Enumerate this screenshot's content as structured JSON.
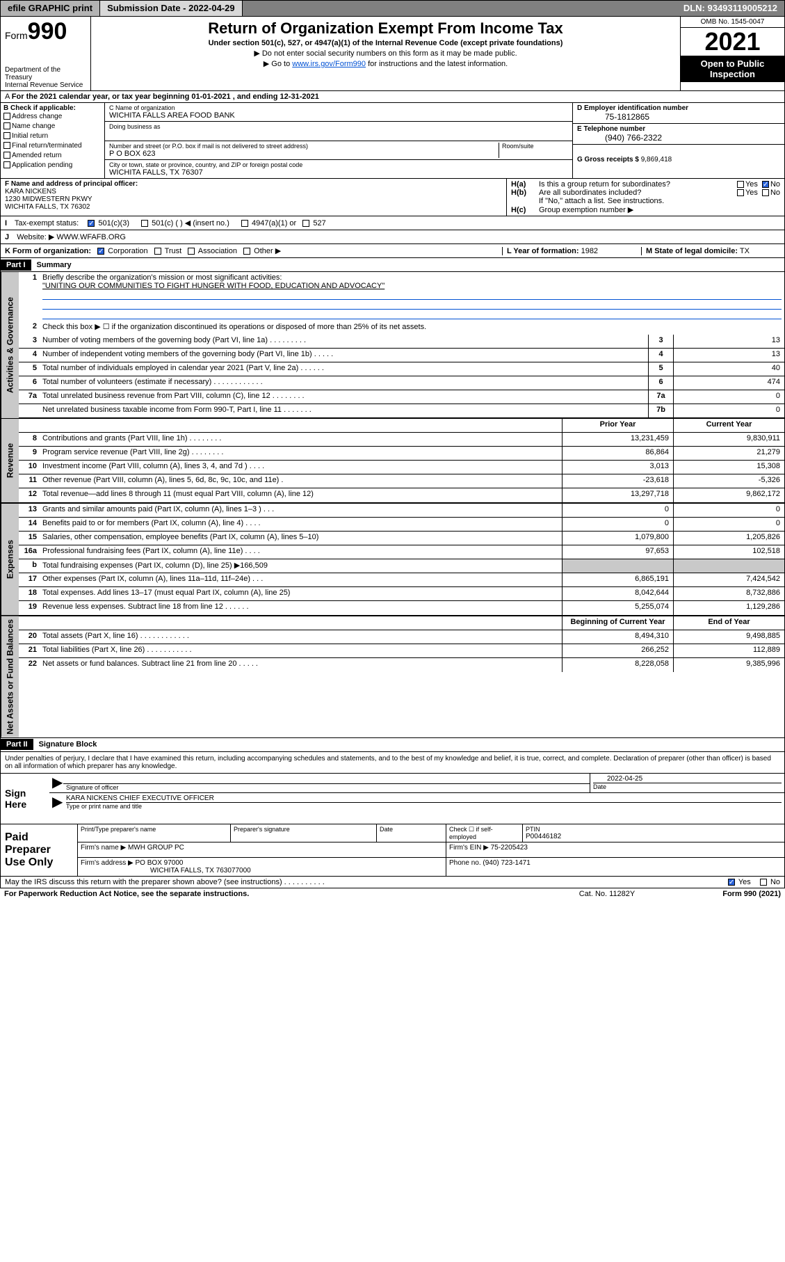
{
  "topbar": {
    "efile": "efile GRAPHIC print",
    "submission": "Submission Date - 2022-04-29",
    "dln": "DLN: 93493119005212"
  },
  "header": {
    "form": "Form",
    "form_num": "990",
    "dept": "Department of the Treasury",
    "irs": "Internal Revenue Service",
    "title": "Return of Organization Exempt From Income Tax",
    "sub1": "Under section 501(c), 527, or 4947(a)(1) of the Internal Revenue Code (except private foundations)",
    "sub2": "▶ Do not enter social security numbers on this form as it may be made public.",
    "sub3_pre": "▶ Go to ",
    "sub3_link": "www.irs.gov/Form990",
    "sub3_post": " for instructions and the latest information.",
    "omb": "OMB No. 1545-0047",
    "year": "2021",
    "otp1": "Open to Public",
    "otp2": "Inspection"
  },
  "row_a": "For the 2021 calendar year, or tax year beginning 01-01-2021    , and ending 12-31-2021",
  "col_b": {
    "hdr": "B Check if applicable:",
    "items": [
      "Address change",
      "Name change",
      "Initial return",
      "Final return/terminated",
      "Amended return",
      "Application pending"
    ]
  },
  "col_c": {
    "name_label": "C Name of organization",
    "name": "WICHITA FALLS AREA FOOD BANK",
    "dba_label": "Doing business as",
    "dba": "",
    "addr_label": "Number and street (or P.O. box if mail is not delivered to street address)",
    "room_label": "Room/suite",
    "addr": "P O BOX 623",
    "city_label": "City or town, state or province, country, and ZIP or foreign postal code",
    "city": "WICHITA FALLS, TX   76307"
  },
  "col_d": {
    "ein_label": "D Employer identification number",
    "ein": "75-1812865",
    "phone_label": "E Telephone number",
    "phone": "(940) 766-2322",
    "gross_label": "G Gross receipts $",
    "gross": "9,869,418"
  },
  "col_f": {
    "label": "F Name and address of principal officer:",
    "name": "KARA NICKENS",
    "addr1": "1230 MIDWESTERN PKWY",
    "addr2": "WICHITA FALLS, TX   76302"
  },
  "col_h": {
    "ha": "Is this a group return for subordinates?",
    "hb": "Are all subordinates included?",
    "hb_note": "If \"No,\" attach a list. See instructions.",
    "hc": "Group exemption number ▶",
    "yes": "Yes",
    "no": "No"
  },
  "row_i": {
    "label": "Tax-exempt status:",
    "opt1": "501(c)(3)",
    "opt2": "501(c) (   ) ◀ (insert no.)",
    "opt3": "4947(a)(1) or",
    "opt4": "527"
  },
  "row_j": {
    "label": "Website: ▶",
    "val": "WWW.WFAFB.ORG"
  },
  "row_k": {
    "label": "K Form of organization:",
    "opts": [
      "Corporation",
      "Trust",
      "Association",
      "Other ▶"
    ]
  },
  "row_l": {
    "label": "L Year of formation:",
    "val": "1982"
  },
  "row_m": {
    "label": "M State of legal domicile:",
    "val": "TX"
  },
  "part1": {
    "hdr": "Part I",
    "title": "Summary"
  },
  "summary": {
    "line1_label": "Briefly describe the organization's mission or most significant activities:",
    "line1_val": "\"UNITING OUR COMMUNITIES TO FIGHT HUNGER WITH FOOD, EDUCATION AND ADVOCACY\"",
    "line2": "Check this box ▶ ☐  if the organization discontinued its operations or disposed of more than 25% of its net assets.",
    "rows_gov": [
      {
        "n": "3",
        "d": "Number of voting members of the governing body (Part VI, line 1a)   .    .    .    .    .    .    .    .    .",
        "c": "3",
        "v": "13"
      },
      {
        "n": "4",
        "d": "Number of independent voting members of the governing body (Part VI, line 1b)   .    .    .    .    .",
        "c": "4",
        "v": "13"
      },
      {
        "n": "5",
        "d": "Total number of individuals employed in calendar year 2021 (Part V, line 2a)   .    .    .    .    .    .",
        "c": "5",
        "v": "40"
      },
      {
        "n": "6",
        "d": "Total number of volunteers (estimate if necessary)   .    .    .    .    .    .    .    .    .    .    .    .",
        "c": "6",
        "v": "474"
      },
      {
        "n": "7a",
        "d": "Total unrelated business revenue from Part VIII, column (C), line 12   .    .    .    .    .    .    .    .",
        "c": "7a",
        "v": "0"
      },
      {
        "n": "",
        "d": "Net unrelated business taxable income from Form 990-T, Part I, line 11   .    .    .    .    .    .    .",
        "c": "7b",
        "v": "0"
      }
    ],
    "hdr_prior": "Prior Year",
    "hdr_current": "Current Year",
    "hdr_begin": "Beginning of Current Year",
    "hdr_end": "End of Year",
    "rows_rev": [
      {
        "n": "8",
        "d": "Contributions and grants (Part VIII, line 1h)   .    .    .    .    .    .    .    .",
        "p": "13,231,459",
        "c": "9,830,911"
      },
      {
        "n": "9",
        "d": "Program service revenue (Part VIII, line 2g)   .    .    .    .    .    .    .    .",
        "p": "86,864",
        "c": "21,279"
      },
      {
        "n": "10",
        "d": "Investment income (Part VIII, column (A), lines 3, 4, and 7d )   .    .    .    .",
        "p": "3,013",
        "c": "15,308"
      },
      {
        "n": "11",
        "d": "Other revenue (Part VIII, column (A), lines 5, 6d, 8c, 9c, 10c, and 11e)   .",
        "p": "-23,618",
        "c": "-5,326"
      },
      {
        "n": "12",
        "d": "Total revenue—add lines 8 through 11 (must equal Part VIII, column (A), line 12)",
        "p": "13,297,718",
        "c": "9,862,172"
      }
    ],
    "rows_exp": [
      {
        "n": "13",
        "d": "Grants and similar amounts paid (Part IX, column (A), lines 1–3 )   .    .    .",
        "p": "0",
        "c": "0"
      },
      {
        "n": "14",
        "d": "Benefits paid to or for members (Part IX, column (A), line 4)   .    .    .    .",
        "p": "0",
        "c": "0"
      },
      {
        "n": "15",
        "d": "Salaries, other compensation, employee benefits (Part IX, column (A), lines 5–10)",
        "p": "1,079,800",
        "c": "1,205,826"
      },
      {
        "n": "16a",
        "d": "Professional fundraising fees (Part IX, column (A), line 11e)   .    .    .    .",
        "p": "97,653",
        "c": "102,518"
      }
    ],
    "line16b": "Total fundraising expenses (Part IX, column (D), line 25) ▶166,509",
    "rows_exp2": [
      {
        "n": "17",
        "d": "Other expenses (Part IX, column (A), lines 11a–11d, 11f–24e)   .    .    .",
        "p": "6,865,191",
        "c": "7,424,542"
      },
      {
        "n": "18",
        "d": "Total expenses. Add lines 13–17 (must equal Part IX, column (A), line 25)",
        "p": "8,042,644",
        "c": "8,732,886"
      },
      {
        "n": "19",
        "d": "Revenue less expenses. Subtract line 18 from line 12   .    .    .    .    .    .",
        "p": "5,255,074",
        "c": "1,129,286"
      }
    ],
    "rows_net": [
      {
        "n": "20",
        "d": "Total assets (Part X, line 16)   .    .    .    .    .    .    .    .    .    .    .    .",
        "p": "8,494,310",
        "c": "9,498,885"
      },
      {
        "n": "21",
        "d": "Total liabilities (Part X, line 26)   .    .    .    .    .    .    .    .    .    .    .",
        "p": "266,252",
        "c": "112,889"
      },
      {
        "n": "22",
        "d": "Net assets or fund balances. Subtract line 21 from line 20   .    .    .    .    .",
        "p": "8,228,058",
        "c": "9,385,996"
      }
    ]
  },
  "part2": {
    "hdr": "Part II",
    "title": "Signature Block"
  },
  "sig": {
    "decl": "Under penalties of perjury, I declare that I have examined this return, including accompanying schedules and statements, and to the best of my knowledge and belief, it is true, correct, and complete. Declaration of preparer (other than officer) is based on all information of which preparer has any knowledge.",
    "sign_here": "Sign Here",
    "sig_officer": "Signature of officer",
    "date_label": "Date",
    "date_val": "2022-04-25",
    "name_title": "KARA NICKENS  CHIEF EXECUTIVE OFFICER",
    "name_label": "Type or print name and title"
  },
  "prep": {
    "hdr": "Paid Preparer Use Only",
    "print_label": "Print/Type preparer's name",
    "sig_label": "Preparer's signature",
    "date_label": "Date",
    "check_label": "Check ☐ if self-employed",
    "ptin_label": "PTIN",
    "ptin": "P00446182",
    "firm_name_label": "Firm's name    ▶",
    "firm_name": "MWH GROUP PC",
    "firm_ein_label": "Firm's EIN ▶",
    "firm_ein": "75-2205423",
    "firm_addr_label": "Firm's address ▶",
    "firm_addr1": "PO BOX 97000",
    "firm_addr2": "WICHITA FALLS, TX  763077000",
    "phone_label": "Phone no.",
    "phone": "(940) 723-1471"
  },
  "footer": {
    "discuss": "May the IRS discuss this return with the preparer shown above? (see instructions)   .    .    .    .    .    .    .    .    .    .",
    "yes": "Yes",
    "no": "No",
    "paperwork": "For Paperwork Reduction Act Notice, see the separate instructions.",
    "cat": "Cat. No. 11282Y",
    "form": "Form 990 (2021)"
  },
  "vtabs": {
    "gov": "Activities & Governance",
    "rev": "Revenue",
    "exp": "Expenses",
    "net": "Net Assets or Fund Balances"
  }
}
